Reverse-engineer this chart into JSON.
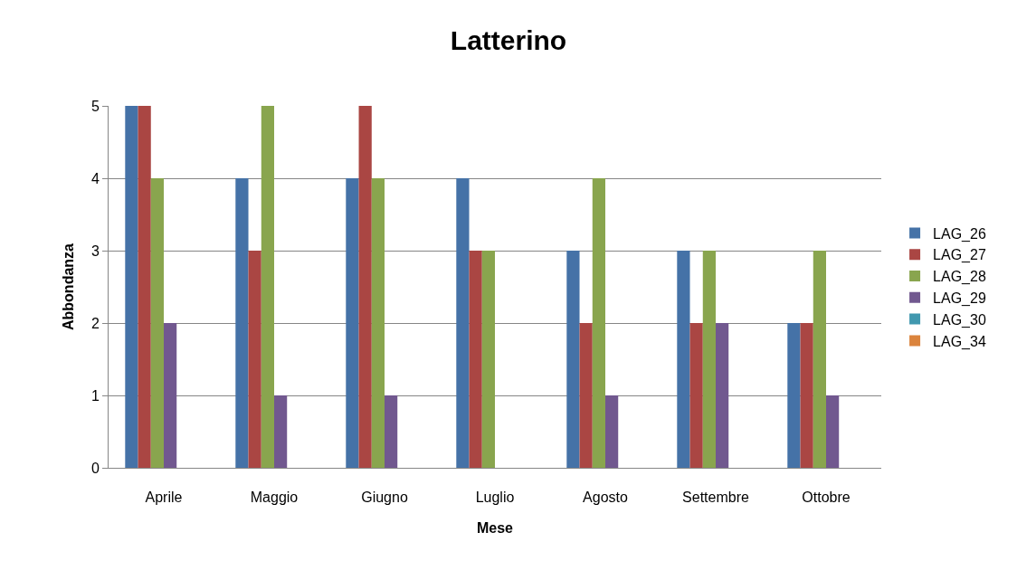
{
  "chart_data": {
    "type": "bar",
    "title": "Latterino",
    "xlabel": "Mese",
    "ylabel": "Abbondanza",
    "categories": [
      "Aprile",
      "Maggio",
      "Giugno",
      "Luglio",
      "Agosto",
      "Settembre",
      "Ottobre"
    ],
    "series": [
      {
        "name": "LAG_26",
        "color": "#4572a7",
        "values": [
          5,
          4,
          4,
          4,
          3,
          3,
          2
        ]
      },
      {
        "name": "LAG_27",
        "color": "#aa4643",
        "values": [
          5,
          3,
          5,
          3,
          2,
          2,
          2
        ]
      },
      {
        "name": "LAG_28",
        "color": "#89a54e",
        "values": [
          4,
          5,
          4,
          3,
          4,
          3,
          3
        ]
      },
      {
        "name": "LAG_29",
        "color": "#71588f",
        "values": [
          2,
          1,
          1,
          0,
          1,
          2,
          1
        ]
      },
      {
        "name": "LAG_30",
        "color": "#4198af",
        "values": [
          0,
          0,
          0,
          0,
          0,
          0,
          0
        ]
      },
      {
        "name": "LAG_34",
        "color": "#db843d",
        "values": [
          0,
          0,
          0,
          0,
          0,
          0,
          0
        ]
      }
    ],
    "ylim": [
      0,
      5
    ],
    "yticks": [
      0,
      1,
      2,
      3,
      4,
      5
    ],
    "grid": "y",
    "legend": "right"
  }
}
